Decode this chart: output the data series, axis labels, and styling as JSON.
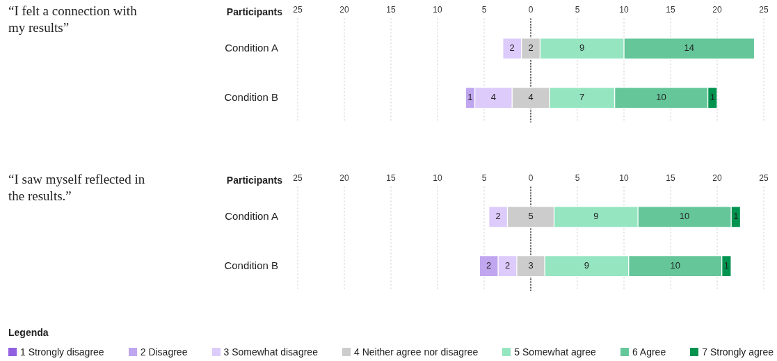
{
  "chart_data": [
    {
      "type": "bar",
      "ylabel": "“I felt a connection with my results”",
      "xlabel": "Participants",
      "orientation": "horizontal",
      "categories": [
        "Condition A",
        "Condition B"
      ],
      "xlim": [
        -25,
        25
      ],
      "xticks": [
        {
          "value": -25,
          "label": "25"
        },
        {
          "value": -20,
          "label": "20"
        },
        {
          "value": -15,
          "label": "15"
        },
        {
          "value": -10,
          "label": "10"
        },
        {
          "value": -5,
          "label": "5"
        },
        0,
        5,
        10,
        15,
        20,
        25
      ],
      "grid": "x",
      "data_labels": true,
      "ref_lines": [
        {
          "axis": "x",
          "value": 0,
          "color": "#222222",
          "line_style": "dotted"
        }
      ],
      "series": [
        {
          "color": "#c0a6ef",
          "values": [
            null,
            1
          ],
          "base": [
            null,
            -7
          ]
        },
        {
          "color": "#dccbfb",
          "values": [
            2,
            4
          ],
          "base": [
            -3,
            -6
          ]
        },
        {
          "color": "#cccccc",
          "values": [
            2,
            4
          ],
          "base": [
            -1,
            -2
          ]
        },
        {
          "color": "#95e5c1",
          "values": [
            9,
            7
          ],
          "base": [
            1,
            2
          ]
        },
        {
          "color": "#65c699",
          "values": [
            14,
            10
          ],
          "base": [
            10,
            9
          ]
        },
        {
          "color": "#00934f",
          "values": [
            null,
            1
          ],
          "base": [
            null,
            19
          ]
        }
      ]
    },
    {
      "type": "bar",
      "ylabel": "“I saw myself reflected in the results.”",
      "xlabel": "Participants",
      "orientation": "horizontal",
      "categories": [
        "Condition A",
        "Condition B"
      ],
      "xlim": [
        -25,
        25
      ],
      "xticks": [
        {
          "value": -25,
          "label": "25"
        },
        {
          "value": -20,
          "label": "20"
        },
        {
          "value": -15,
          "label": "15"
        },
        {
          "value": -10,
          "label": "10"
        },
        {
          "value": -5,
          "label": "5"
        },
        0,
        5,
        10,
        15,
        20,
        25
      ],
      "grid": "x",
      "data_labels": true,
      "ref_lines": [
        {
          "axis": "x",
          "value": 0,
          "color": "#222222",
          "line_style": "dotted"
        }
      ],
      "legend": "bottom",
      "legend_title": "Legenda",
      "series": [
        {
          "name": "1 Strongly disagree",
          "color": "#9061e0",
          "values": [
            null,
            null
          ],
          "base": [
            null,
            null
          ]
        },
        {
          "name": "2 Disagree",
          "color": "#c0a6ef",
          "values": [
            null,
            2
          ],
          "base": [
            null,
            -5.5
          ]
        },
        {
          "name": "3 Somewhat disagree",
          "color": "#dccbfb",
          "values": [
            2,
            2
          ],
          "base": [
            -4.5,
            -3.5
          ]
        },
        {
          "name": "4 Neither agree nor disagree",
          "color": "#cccccc",
          "values": [
            5,
            3
          ],
          "base": [
            -2.5,
            -1.5
          ]
        },
        {
          "name": "5 Somewhat agree",
          "color": "#95e5c1",
          "values": [
            9,
            9
          ],
          "base": [
            2.5,
            1.5
          ]
        },
        {
          "name": "6 Agree",
          "color": "#65c699",
          "values": [
            10,
            10
          ],
          "base": [
            11.5,
            10.5
          ]
        },
        {
          "name": "7 Strongly agree",
          "color": "#00934f",
          "values": [
            1,
            1
          ],
          "base": [
            21.5,
            20.5
          ]
        }
      ]
    }
  ]
}
